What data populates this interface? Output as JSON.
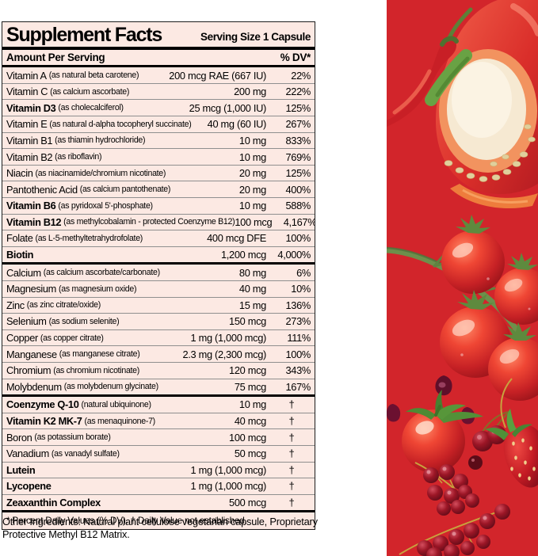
{
  "colors": {
    "panel_red": "#d2252b",
    "label_bg": "#fce9e3"
  },
  "label": {
    "title": "Supplement Facts",
    "serving_size": "Serving Size 1 Capsule",
    "amount_header": "Amount Per Serving",
    "dv_header": "% DV*",
    "rows": [
      {
        "name": "Vitamin A",
        "desc": "(as natural beta carotene)",
        "amount": "200 mcg RAE (667 IU)",
        "dv": "22%",
        "bold": false,
        "thick_top": false
      },
      {
        "name": "Vitamin C",
        "desc": "(as calcium ascorbate)",
        "amount": "200 mg",
        "dv": "222%",
        "bold": false,
        "thick_top": false
      },
      {
        "name": "Vitamin D3",
        "desc": "(as cholecalciferol)",
        "amount": "25 mcg (1,000 IU)",
        "dv": "125%",
        "bold": true,
        "thick_top": false
      },
      {
        "name": "Vitamin E",
        "desc": "(as natural d-alpha tocopheryl succinate)",
        "amount": "40 mg (60 IU)",
        "dv": "267%",
        "bold": false,
        "thick_top": false
      },
      {
        "name": "Vitamin B1",
        "desc": "(as thiamin hydrochloride)",
        "amount": "10 mg",
        "dv": "833%",
        "bold": false,
        "thick_top": false
      },
      {
        "name": "Vitamin B2",
        "desc": "(as riboflavin)",
        "amount": "10 mg",
        "dv": "769%",
        "bold": false,
        "thick_top": false
      },
      {
        "name": "Niacin",
        "desc": "(as niacinamide/chromium nicotinate)",
        "amount": "20 mg",
        "dv": "125%",
        "bold": false,
        "thick_top": false
      },
      {
        "name": "Pantothenic Acid",
        "desc": "(as calcium pantothenate)",
        "amount": "20 mg",
        "dv": "400%",
        "bold": false,
        "thick_top": false
      },
      {
        "name": "Vitamin B6",
        "desc": "(as pyridoxal 5'-phosphate)",
        "amount": "10 mg",
        "dv": "588%",
        "bold": true,
        "thick_top": false
      },
      {
        "name": "Vitamin B12",
        "desc": "(as methylcobalamin - protected Coenzyme B12)",
        "amount": "100 mcg",
        "dv": "4,167%",
        "bold": true,
        "thick_top": false
      },
      {
        "name": "Folate",
        "desc": "(as L-5-methyltetrahydrofolate)",
        "amount": "400 mcg DFE",
        "dv": "100%",
        "bold": false,
        "thick_top": false
      },
      {
        "name": "Biotin",
        "desc": "",
        "amount": "1,200 mcg",
        "dv": "4,000%",
        "bold": true,
        "thick_top": false
      },
      {
        "name": "Calcium",
        "desc": "(as calcium ascorbate/carbonate)",
        "amount": "80 mg",
        "dv": "6%",
        "bold": false,
        "thick_top": true
      },
      {
        "name": "Magnesium",
        "desc": "(as magnesium oxide)",
        "amount": "40 mg",
        "dv": "10%",
        "bold": false,
        "thick_top": false
      },
      {
        "name": "Zinc",
        "desc": "(as zinc citrate/oxide)",
        "amount": "15 mg",
        "dv": "136%",
        "bold": false,
        "thick_top": false
      },
      {
        "name": "Selenium",
        "desc": "(as sodium selenite)",
        "amount": "150 mcg",
        "dv": "273%",
        "bold": false,
        "thick_top": false
      },
      {
        "name": "Copper",
        "desc": "(as copper citrate)",
        "amount": "1 mg (1,000 mcg)",
        "dv": "111%",
        "bold": false,
        "thick_top": false
      },
      {
        "name": "Manganese",
        "desc": "(as manganese citrate)",
        "amount": "2.3 mg (2,300 mcg)",
        "dv": "100%",
        "bold": false,
        "thick_top": false
      },
      {
        "name": "Chromium",
        "desc": "(as chromium nicotinate)",
        "amount": "120 mcg",
        "dv": "343%",
        "bold": false,
        "thick_top": false
      },
      {
        "name": "Molybdenum",
        "desc": "(as molybdenum glycinate)",
        "amount": "75 mcg",
        "dv": "167%",
        "bold": false,
        "thick_top": false
      },
      {
        "name": "Coenzyme Q-10",
        "desc": "(natural ubiquinone)",
        "amount": "10 mg",
        "dv": "†",
        "bold": true,
        "thick_top": true
      },
      {
        "name": "Vitamin K2 MK-7",
        "desc": "(as menaquinone-7)",
        "amount": "40 mcg",
        "dv": "†",
        "bold": true,
        "thick_top": false
      },
      {
        "name": "Boron",
        "desc": "(as potassium borate)",
        "amount": "100 mcg",
        "dv": "†",
        "bold": false,
        "thick_top": false
      },
      {
        "name": "Vanadium",
        "desc": "(as vanadyl sulfate)",
        "amount": "50 mcg",
        "dv": "†",
        "bold": false,
        "thick_top": false
      },
      {
        "name": "Lutein",
        "desc": "",
        "amount": "1 mg (1,000 mcg)",
        "dv": "†",
        "bold": true,
        "thick_top": false
      },
      {
        "name": "Lycopene",
        "desc": "",
        "amount": "1 mg (1,000 mcg)",
        "dv": "†",
        "bold": true,
        "thick_top": false
      },
      {
        "name": "Zeaxanthin Complex",
        "desc": "",
        "amount": "500 mcg",
        "dv": "†",
        "bold": true,
        "thick_top": false
      }
    ],
    "footnote": "* Percent Daily Values (% DV). † Daily Value not established.",
    "other_ingredients": "Other Ingredients: Natural plant cellulose vegetarian capsule, Proprietary Protective Methyl B12 Matrix."
  },
  "image_panel": {
    "background": "#d2252b",
    "fruits": [
      "chili-pepper",
      "bell-pepper-half",
      "cherry-tomatoes-on-vine",
      "tomato",
      "cherries",
      "red-currants",
      "strawberry",
      "pomegranate-seeds"
    ]
  }
}
